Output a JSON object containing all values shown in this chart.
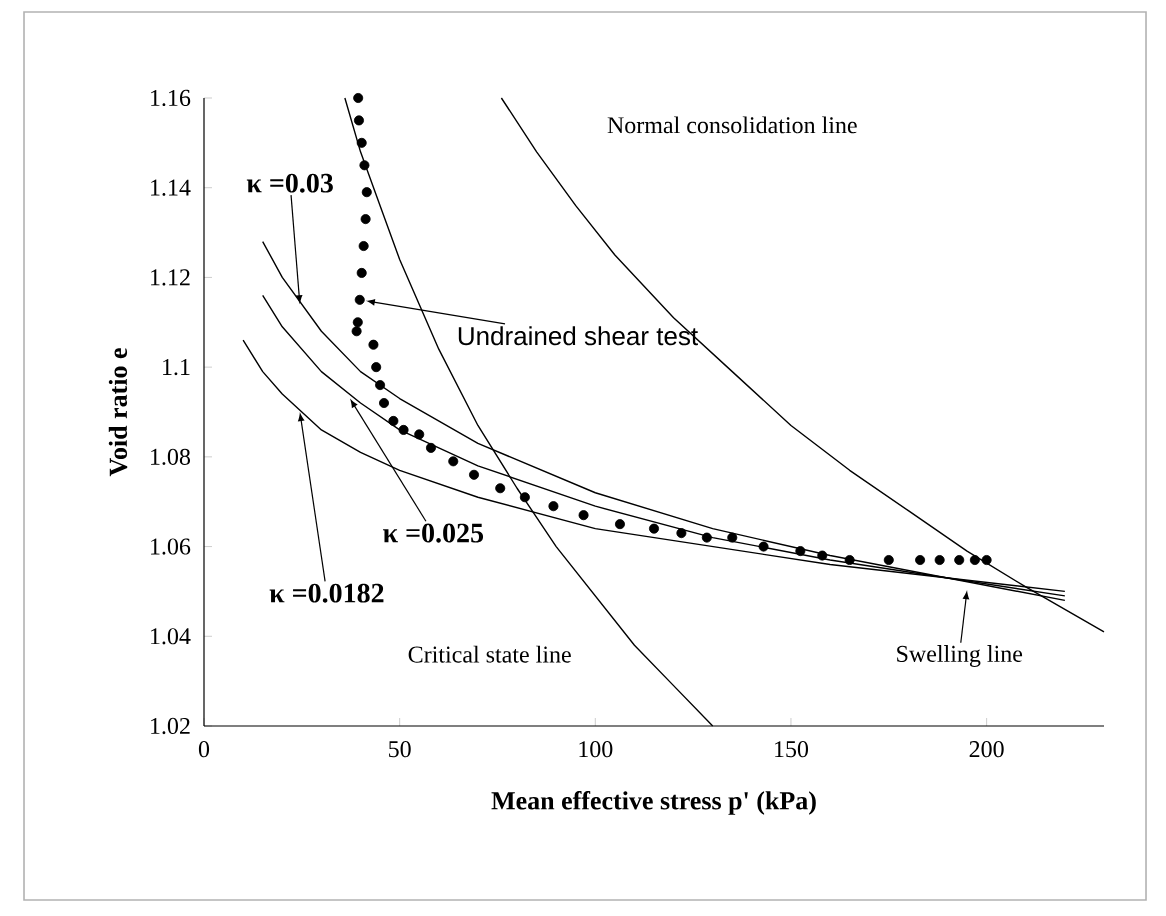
{
  "chart_data": {
    "type": "line",
    "xlabel": "Mean effective stress p' (kPa)",
    "ylabel": "Void ratio e",
    "xlim": [
      0,
      230
    ],
    "ylim": [
      1.02,
      1.16
    ],
    "xticks": [
      0,
      50,
      100,
      150,
      200
    ],
    "yticks": [
      1.02,
      1.04,
      1.06,
      1.08,
      1.1,
      1.12,
      1.14,
      1.16
    ],
    "series": [
      {
        "name": "Normal consolidation line",
        "color": "#000000",
        "x": [
          76,
          85,
          95,
          105,
          120,
          135,
          150,
          165,
          180,
          195,
          210,
          230
        ],
        "values": [
          1.16,
          1.148,
          1.136,
          1.125,
          1.111,
          1.099,
          1.087,
          1.077,
          1.068,
          1.059,
          1.051,
          1.041
        ]
      },
      {
        "name": "Critical state line",
        "color": "#000000",
        "x": [
          36,
          40,
          45,
          50,
          60,
          70,
          80,
          90,
          100,
          110,
          120,
          130
        ],
        "values": [
          1.16,
          1.148,
          1.136,
          1.124,
          1.104,
          1.087,
          1.073,
          1.06,
          1.049,
          1.038,
          1.029,
          1.02
        ]
      },
      {
        "color": "#000000",
        "x": [
          15,
          20,
          30,
          40,
          50,
          70,
          100,
          130,
          160,
          190,
          220
        ],
        "values": [
          1.128,
          1.12,
          1.108,
          1.099,
          1.093,
          1.083,
          1.072,
          1.064,
          1.058,
          1.053,
          1.048
        ]
      },
      {
        "color": "#000000",
        "x": [
          15,
          20,
          30,
          40,
          50,
          70,
          100,
          130,
          160,
          190,
          220
        ],
        "values": [
          1.116,
          1.109,
          1.099,
          1.092,
          1.086,
          1.078,
          1.069,
          1.062,
          1.057,
          1.053,
          1.049
        ]
      },
      {
        "color": "#000000",
        "x": [
          10,
          15,
          20,
          30,
          40,
          50,
          70,
          100,
          130,
          160,
          190,
          220
        ],
        "values": [
          1.106,
          1.099,
          1.094,
          1.086,
          1.081,
          1.077,
          1.071,
          1.064,
          1.06,
          1.056,
          1.053,
          1.05
        ]
      },
      {
        "name": "Undrained shear test",
        "type": "scatter",
        "marker": "circle",
        "color": "#000000",
        "x": [
          39.4,
          39.6,
          40.3,
          41,
          41.6,
          41.3,
          40.8,
          40.3,
          39.8,
          39.3,
          39.0,
          43.3,
          44,
          45,
          46,
          48.4,
          51,
          55,
          58,
          63.7,
          69,
          75.7,
          82,
          89.3,
          97,
          106.3,
          115,
          122,
          128.5,
          135,
          143,
          152.4,
          158,
          165,
          175,
          183,
          188,
          193,
          197,
          200
        ],
        "values": [
          1.16,
          1.155,
          1.15,
          1.145,
          1.139,
          1.133,
          1.127,
          1.121,
          1.115,
          1.11,
          1.108,
          1.105,
          1.1,
          1.096,
          1.092,
          1.088,
          1.086,
          1.085,
          1.082,
          1.079,
          1.076,
          1.073,
          1.071,
          1.069,
          1.067,
          1.065,
          1.064,
          1.063,
          1.062,
          1.062,
          1.06,
          1.059,
          1.058,
          1.057,
          1.057,
          1.057,
          1.057,
          1.057,
          1.057,
          1.057
        ]
      }
    ],
    "annotations": [
      {
        "text": "κ =0.03",
        "x": 24.5,
        "y": 1.114
      },
      {
        "text": "κ =0.025",
        "x": 37.3,
        "y": 1.093
      },
      {
        "text": "κ =0.0182",
        "x": 24.5,
        "y": 1.09
      },
      {
        "text": "Swelling line",
        "x": 195,
        "y": 1.0503
      }
    ]
  }
}
